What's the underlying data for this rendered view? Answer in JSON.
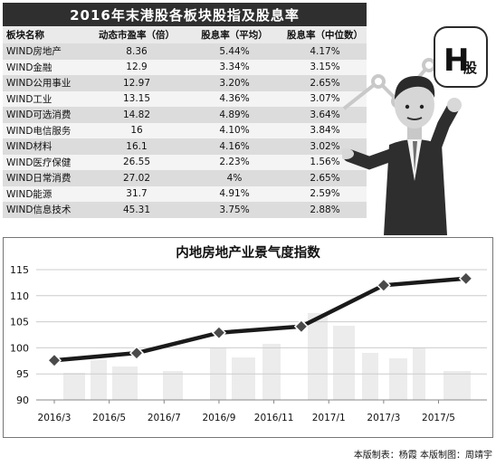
{
  "table": {
    "title": "2016年末港股各板块股指及股息率",
    "headers": [
      "板块名称",
      "动态市盈率（倍）",
      "股息率（平均）",
      "股息率（中位数）"
    ],
    "rows": [
      [
        "WIND房地产",
        "8.36",
        "5.44%",
        "4.17%"
      ],
      [
        "WIND金融",
        "12.9",
        "3.34%",
        "3.15%"
      ],
      [
        "WIND公用事业",
        "12.97",
        "3.20%",
        "2.65%"
      ],
      [
        "WIND工业",
        "13.15",
        "4.36%",
        "3.07%"
      ],
      [
        "WIND可选消费",
        "14.82",
        "4.89%",
        "3.64%"
      ],
      [
        "WIND电信服务",
        "16",
        "4.10%",
        "3.84%"
      ],
      [
        "WIND材料",
        "16.1",
        "4.16%",
        "3.02%"
      ],
      [
        "WIND医疗保健",
        "26.55",
        "2.23%",
        "1.56%"
      ],
      [
        "WIND日常消费",
        "27.02",
        "4%",
        "2.65%"
      ],
      [
        "WIND能源",
        "31.7",
        "4.91%",
        "2.59%"
      ],
      [
        "WIND信息技术",
        "45.31",
        "3.75%",
        "2.88%"
      ]
    ]
  },
  "badge": {
    "letter": "H",
    "text": "股"
  },
  "chart_data": {
    "type": "line",
    "title": "内地房地产业景气度指数",
    "xlabel": "",
    "ylabel": "",
    "x_ticks": [
      "2016/3",
      "2016/5",
      "2016/7",
      "2016/9",
      "2016/11",
      "2017/1",
      "2017/3",
      "2017/5"
    ],
    "y_ticks": [
      90,
      95,
      100,
      105,
      110,
      115
    ],
    "ylim": [
      90,
      115
    ],
    "grid": true,
    "series": [
      {
        "x": [
          "2016/3",
          "2016/6",
          "2016/9",
          "2016/12",
          "2017/3",
          "2017/6"
        ],
        "values": [
          97.6,
          99.0,
          102.9,
          104.1,
          112.0,
          113.3
        ]
      }
    ],
    "colors": {
      "line": "#1a1a1a",
      "marker": "#4a4a4a",
      "grid": "#cccccc"
    }
  },
  "credit": "本版制表：杨霞 本版制图：周靖宇"
}
